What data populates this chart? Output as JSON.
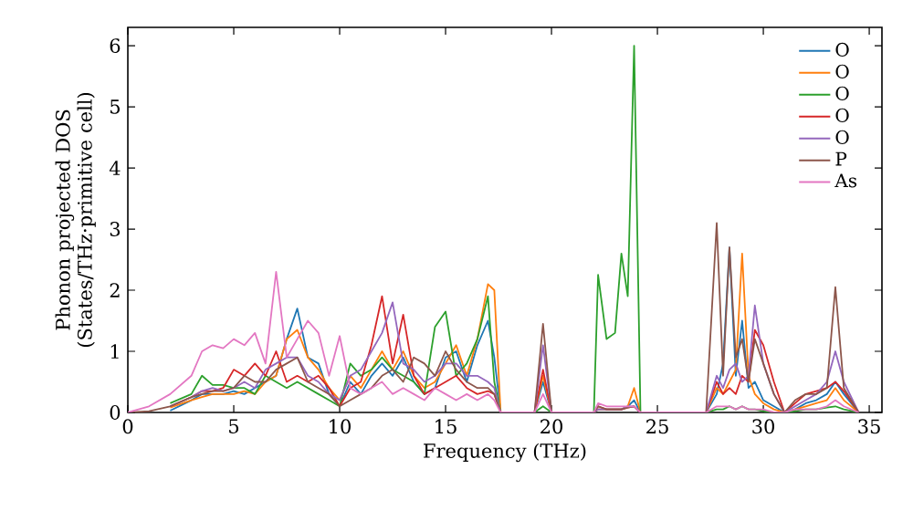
{
  "chart_data": {
    "type": "line",
    "xlabel": "Frequency (THz)",
    "ylabel": "Phonon projected DOS (States/THz·primitive cell)",
    "xlim": [
      0,
      35.6
    ],
    "ylim": [
      0,
      6.3
    ],
    "xticks": [
      0,
      5,
      10,
      15,
      20,
      25,
      30,
      35
    ],
    "yticks": [
      0,
      1,
      2,
      3,
      4,
      5,
      6
    ],
    "legend": "top right",
    "x": [
      0,
      1,
      2,
      3,
      3.5,
      4,
      4.5,
      5,
      5.5,
      6,
      6.5,
      7,
      7.5,
      8,
      8.5,
      9,
      9.5,
      10,
      10.5,
      11,
      11.5,
      12,
      12.5,
      13,
      13.5,
      14,
      14.5,
      15,
      15.5,
      16,
      16.5,
      17,
      17.3,
      17.6,
      18.5,
      19.2,
      19.6,
      20,
      20.4,
      22,
      22.2,
      22.6,
      23,
      23.3,
      23.6,
      23.9,
      24.2,
      27.3,
      27.8,
      28.1,
      28.4,
      28.7,
      29,
      29.3,
      29.6,
      30,
      30.5,
      31,
      31.5,
      32,
      32.5,
      33,
      33.4,
      33.8,
      34.5
    ],
    "series": [
      {
        "name": "O",
        "color": "#1f77b4",
        "values": [
          null,
          null,
          0.03,
          0.2,
          0.3,
          0.3,
          0.3,
          0.35,
          0.3,
          0.4,
          0.5,
          0.6,
          1.2,
          1.7,
          0.9,
          0.8,
          0.3,
          0.1,
          0.5,
          0.3,
          0.6,
          0.8,
          0.6,
          0.9,
          0.5,
          0.3,
          0.4,
          0.9,
          1.0,
          0.5,
          1.1,
          1.5,
          0.9,
          0,
          0,
          0,
          0.5,
          0,
          0,
          0,
          0.05,
          0.05,
          0.05,
          0.05,
          0.1,
          0.2,
          0,
          0,
          0.3,
          0.8,
          2.7,
          0.6,
          1.5,
          0.4,
          0.5,
          0.2,
          0.1,
          0,
          0.05,
          0.15,
          0.2,
          0.3,
          0.5,
          0.3,
          0
        ]
      },
      {
        "name": "O",
        "color": "#ff7f0e",
        "values": [
          null,
          null,
          0.08,
          0.2,
          0.25,
          0.3,
          0.3,
          0.3,
          0.35,
          0.3,
          0.5,
          0.6,
          1.2,
          1.35,
          0.9,
          0.7,
          0.4,
          0.2,
          0.6,
          0.4,
          0.7,
          1.0,
          0.7,
          1.0,
          0.6,
          0.4,
          0.5,
          0.8,
          1.1,
          0.6,
          1.2,
          2.1,
          2.0,
          0,
          0,
          0,
          0.6,
          0,
          0,
          0,
          0.05,
          0.05,
          0.05,
          0.05,
          0.1,
          0.4,
          0,
          0,
          0.4,
          0.3,
          0.5,
          0.7,
          2.6,
          0.6,
          0.3,
          0.15,
          0.05,
          0,
          0.05,
          0.1,
          0.15,
          0.2,
          0.4,
          0.2,
          0
        ]
      },
      {
        "name": "O",
        "color": "#2ca02c",
        "values": [
          null,
          null,
          0.15,
          0.3,
          0.6,
          0.45,
          0.45,
          0.4,
          0.4,
          0.3,
          0.6,
          0.5,
          0.4,
          0.5,
          0.4,
          0.3,
          0.2,
          0.1,
          0.8,
          0.6,
          0.7,
          0.9,
          0.7,
          0.6,
          0.5,
          0.3,
          1.4,
          1.65,
          0.6,
          0.8,
          1.2,
          1.9,
          0.5,
          0,
          0,
          0,
          0.1,
          0,
          0,
          0,
          2.25,
          1.2,
          1.3,
          2.6,
          1.9,
          6.0,
          0,
          0,
          0.05,
          0.05,
          0.1,
          0.05,
          0.1,
          0.05,
          0.05,
          0.02,
          0,
          0,
          0.02,
          0.05,
          0.05,
          0.08,
          0.1,
          0.05,
          0
        ]
      },
      {
        "name": "O",
        "color": "#d62728",
        "values": [
          null,
          null,
          0.1,
          0.25,
          0.35,
          0.35,
          0.4,
          0.7,
          0.6,
          0.8,
          0.6,
          1.0,
          0.5,
          0.6,
          0.5,
          0.6,
          0.4,
          0.1,
          0.4,
          0.5,
          1.1,
          1.9,
          0.8,
          1.6,
          0.6,
          0.3,
          0.4,
          0.5,
          0.6,
          0.4,
          0.3,
          0.35,
          0.3,
          0,
          0,
          0,
          0.7,
          0,
          0,
          0,
          0.1,
          0.05,
          0.05,
          0.05,
          0.08,
          0.1,
          0,
          0,
          0.5,
          0.3,
          0.4,
          0.3,
          0.6,
          0.5,
          1.35,
          1.1,
          0.5,
          0,
          0.15,
          0.3,
          0.35,
          0.4,
          0.5,
          0.35,
          0
        ]
      },
      {
        "name": "O",
        "color": "#9467bd",
        "values": [
          null,
          null,
          0.1,
          0.25,
          0.35,
          0.4,
          0.35,
          0.4,
          0.5,
          0.4,
          0.7,
          0.8,
          0.9,
          0.9,
          0.6,
          0.5,
          0.3,
          0.2,
          0.6,
          0.7,
          1.0,
          1.3,
          1.8,
          0.8,
          0.7,
          0.5,
          0.6,
          0.8,
          0.8,
          0.6,
          0.6,
          0.5,
          0.4,
          0,
          0,
          0,
          1.1,
          0,
          0,
          0,
          0.05,
          0.05,
          0.05,
          0.05,
          0.1,
          0.1,
          0,
          0,
          0.6,
          0.4,
          0.7,
          0.8,
          0.5,
          0.6,
          1.75,
          0.8,
          0.3,
          0,
          0.1,
          0.2,
          0.3,
          0.5,
          1.0,
          0.5,
          0
        ]
      },
      {
        "name": "P",
        "color": "#8c564b",
        "values": [
          0,
          0.02,
          0.1,
          0.25,
          0.3,
          0.35,
          0.35,
          0.4,
          0.6,
          0.5,
          0.5,
          0.7,
          0.8,
          0.9,
          0.5,
          0.4,
          0.3,
          0.1,
          0.2,
          0.3,
          0.4,
          0.6,
          0.7,
          0.5,
          0.9,
          0.8,
          0.6,
          1.0,
          0.7,
          0.5,
          0.4,
          0.4,
          0.3,
          0,
          0,
          0,
          1.45,
          0,
          0,
          0,
          0.1,
          0.05,
          0.05,
          0.05,
          0.08,
          0.1,
          0,
          0,
          3.1,
          0.6,
          2.7,
          0.9,
          1.2,
          0.5,
          1.2,
          0.8,
          0.3,
          0,
          0.2,
          0.3,
          0.3,
          0.4,
          2.05,
          0.4,
          0
        ]
      },
      {
        "name": "As",
        "color": "#e377c2",
        "values": [
          0,
          0.1,
          0.3,
          0.6,
          1.0,
          1.1,
          1.05,
          1.2,
          1.1,
          1.3,
          0.8,
          2.3,
          0.9,
          1.2,
          1.5,
          1.3,
          0.6,
          1.25,
          0.4,
          0.3,
          0.4,
          0.5,
          0.3,
          0.4,
          0.3,
          0.2,
          0.4,
          0.3,
          0.2,
          0.3,
          0.2,
          0.3,
          0.2,
          0,
          0,
          0,
          0.3,
          0,
          0,
          0,
          0.15,
          0.1,
          0.1,
          0.1,
          0.1,
          0.1,
          0,
          0,
          0.1,
          0.1,
          0.1,
          0.05,
          0.1,
          0.05,
          0.05,
          0.05,
          0,
          0,
          0.05,
          0.05,
          0.05,
          0.1,
          0.2,
          0.1,
          0
        ]
      }
    ]
  }
}
